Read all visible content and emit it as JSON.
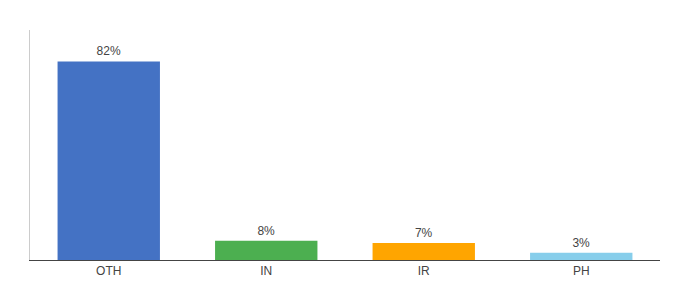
{
  "chart_data": {
    "type": "bar",
    "categories": [
      "OTH",
      "IN",
      "IR",
      "PH"
    ],
    "values": [
      82,
      8,
      7,
      3
    ],
    "value_labels": [
      "82%",
      "8%",
      "7%",
      "3%"
    ],
    "colors": [
      "#4472C4",
      "#4CAF50",
      "#FFA500",
      "#87CEEB"
    ],
    "ylim": [
      0,
      95
    ],
    "data_labels": true,
    "tick_labels": "x",
    "grid": false
  }
}
